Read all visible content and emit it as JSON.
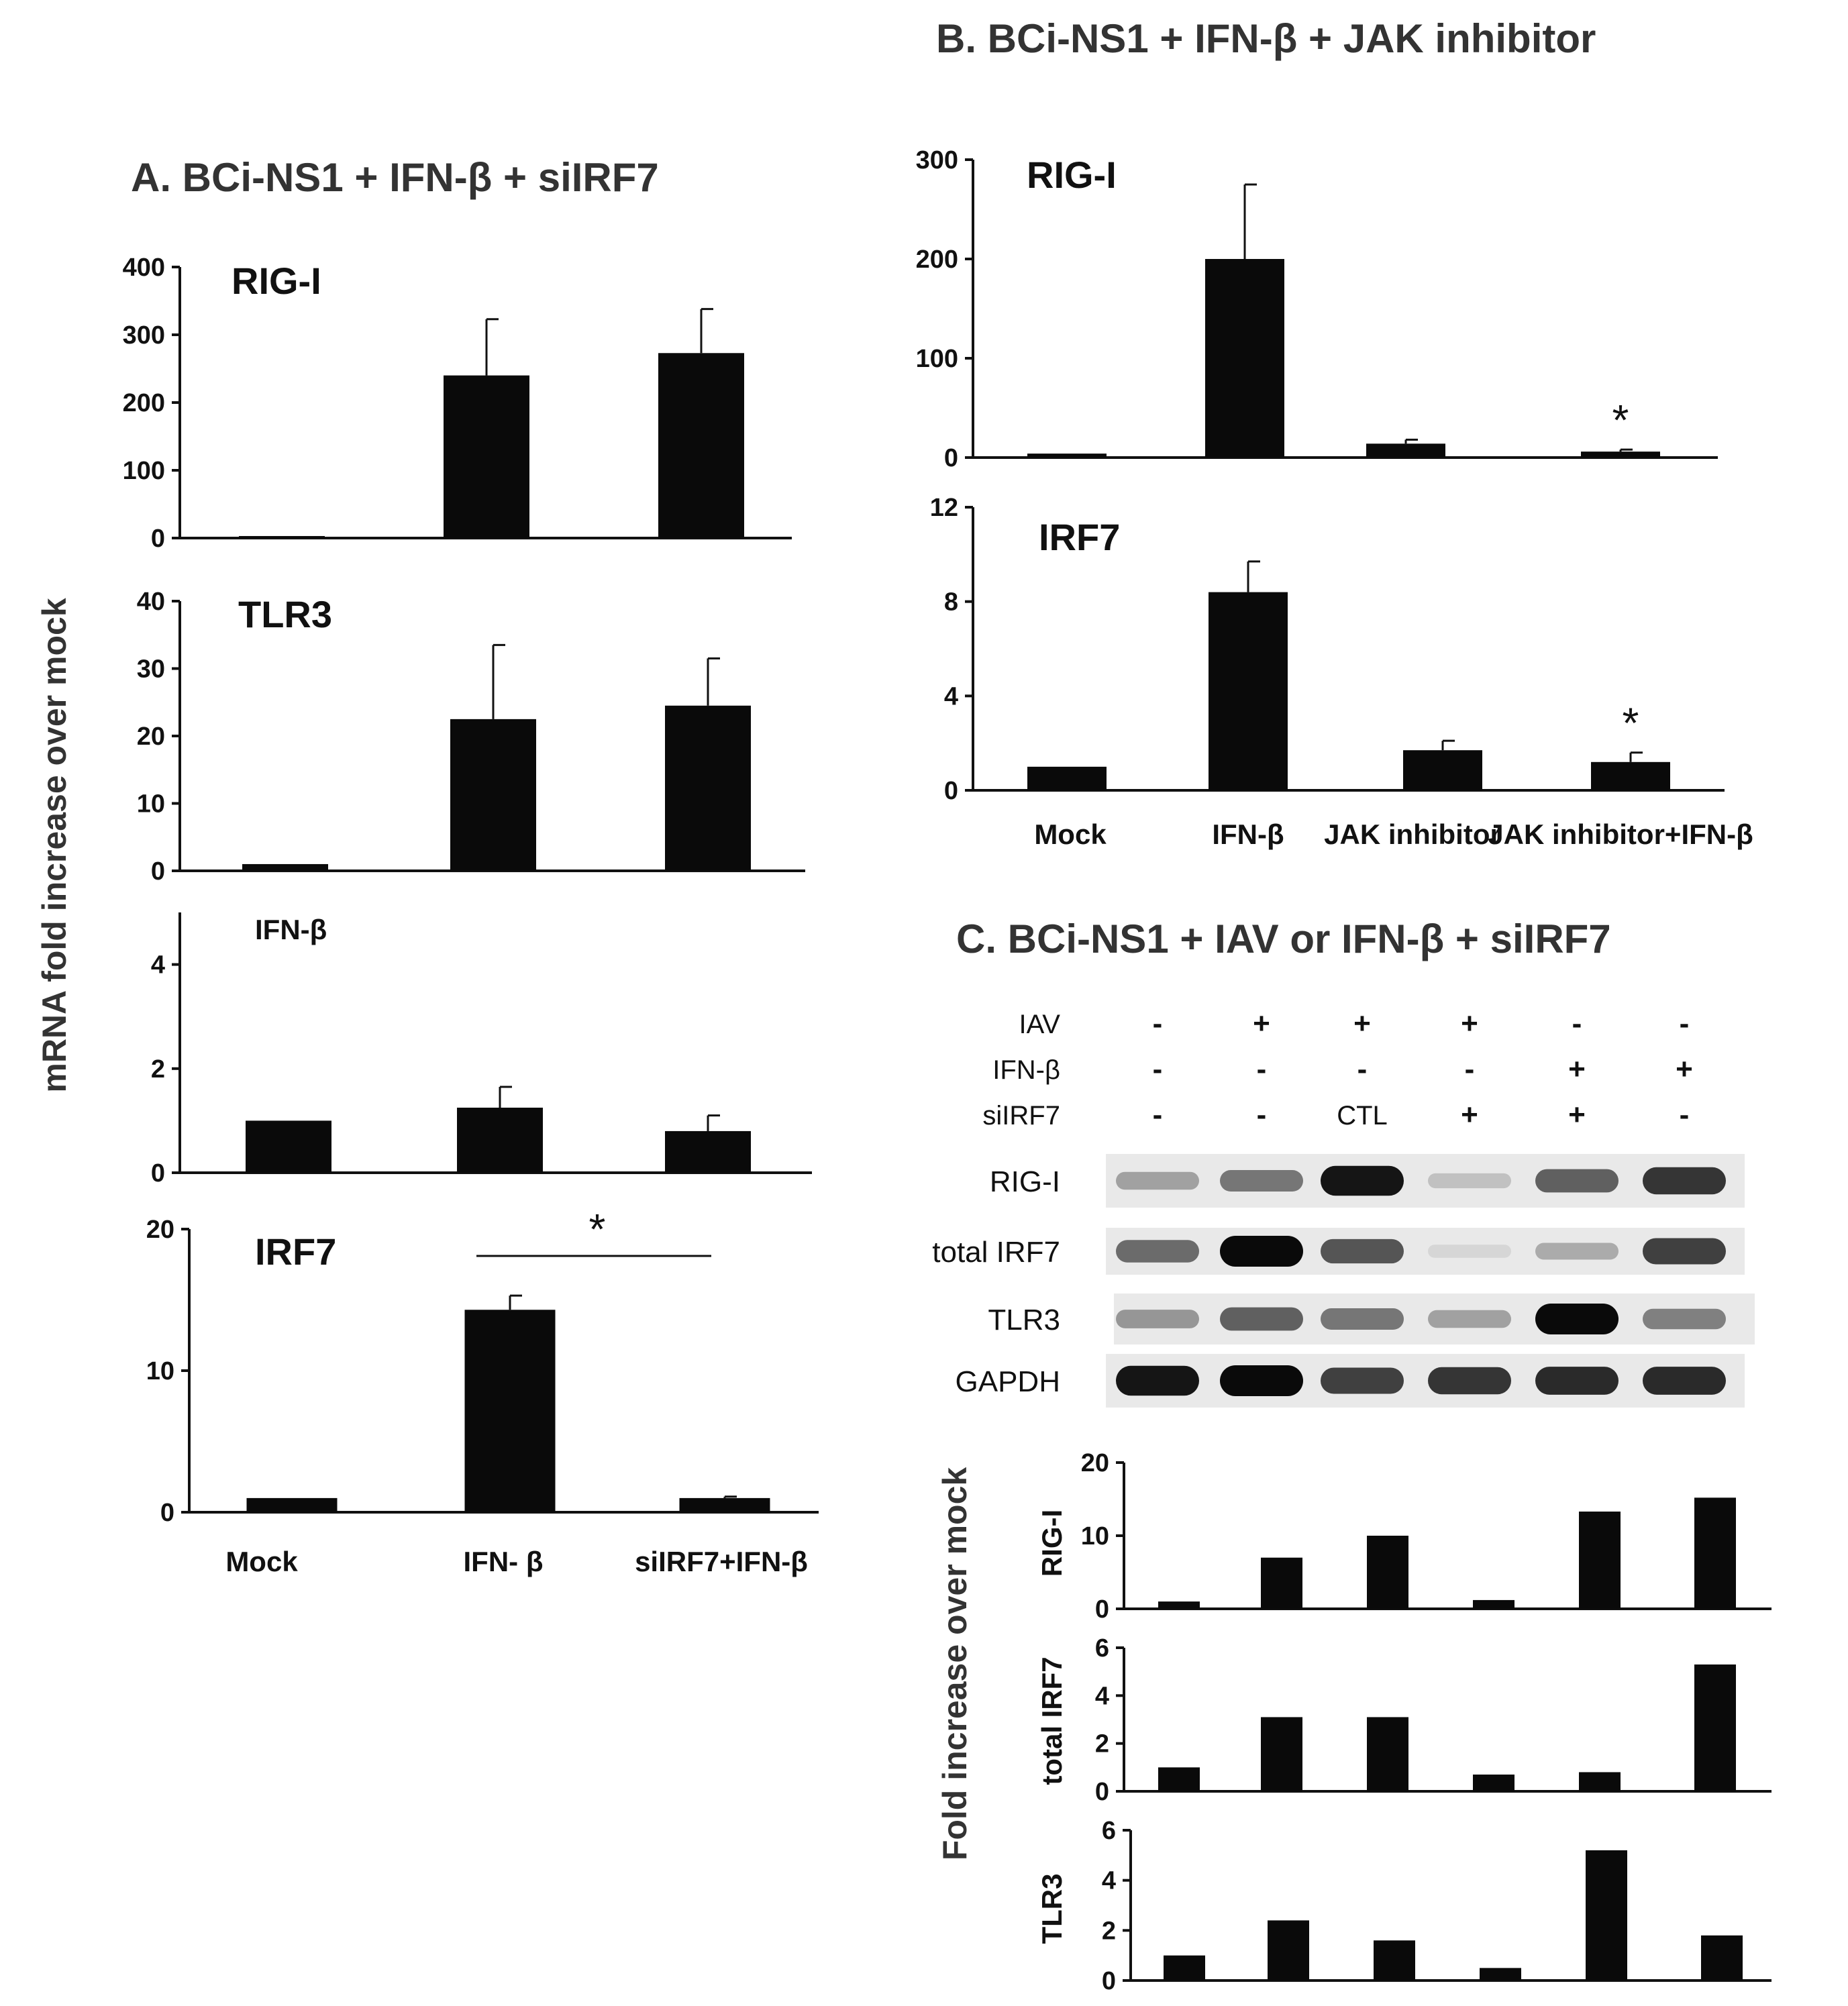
{
  "chart_data": [
    {
      "panel": "A",
      "title": "A.  BCi-NS1 + IFN-β + siIRF7",
      "type": "bar",
      "ylabel": "mRNA fold increase over mock",
      "categories": [
        "Mock",
        "IFN- β",
        "siIRF7+IFN-β"
      ],
      "subplots": [
        {
          "gene": "RIG-I",
          "ylim": [
            0,
            400
          ],
          "yticks": [
            0,
            100,
            200,
            300,
            400
          ],
          "values": [
            3,
            240,
            273
          ],
          "errors": [
            0,
            83,
            65
          ]
        },
        {
          "gene": "TLR3",
          "ylim": [
            0,
            40
          ],
          "yticks": [
            0,
            10,
            20,
            30,
            40
          ],
          "values": [
            1,
            22.5,
            24.5
          ],
          "errors": [
            0,
            11,
            7
          ]
        },
        {
          "gene": "IFN-β",
          "ylim": [
            0,
            5
          ],
          "yticks": [
            0,
            2,
            4
          ],
          "values": [
            1,
            1.25,
            0.8
          ],
          "errors": [
            0,
            0.4,
            0.3
          ]
        },
        {
          "gene": "IRF7",
          "ylim": [
            0,
            20
          ],
          "yticks": [
            0,
            10,
            20
          ],
          "values": [
            1,
            14.3,
            1
          ],
          "errors": [
            0,
            1,
            0.1
          ],
          "significance": {
            "from": 1,
            "to": 2,
            "label": "*"
          }
        }
      ]
    },
    {
      "panel": "B",
      "title": "B. BCi-NS1 + IFN-β + JAK inhibitor",
      "type": "bar",
      "categories": [
        "Mock",
        "IFN-β",
        "JAK inhibitor",
        "JAK inhibitor+IFN-β"
      ],
      "subplots": [
        {
          "gene": "RIG-I",
          "ylim": [
            0,
            300
          ],
          "yticks": [
            0,
            100,
            200,
            300
          ],
          "values": [
            4,
            200,
            14,
            6
          ],
          "errors": [
            0,
            75,
            4,
            2
          ],
          "stars": [
            3
          ]
        },
        {
          "gene": "IRF7",
          "ylim": [
            0,
            12
          ],
          "yticks": [
            0,
            4,
            8,
            12
          ],
          "values": [
            1,
            8.4,
            1.7,
            1.2
          ],
          "errors": [
            0,
            1.3,
            0.4,
            0.4
          ],
          "stars": [
            3
          ]
        }
      ]
    },
    {
      "panel": "C",
      "title": "C.  BCi-NS1 + IAV or IFN-β + siIRF7",
      "type": "bar",
      "ylabel": "Fold increase over mock",
      "treatments": [
        {
          "label": "IAV",
          "signs": [
            "-",
            "+",
            "+",
            "+",
            "-",
            "-"
          ]
        },
        {
          "label": "IFN-β",
          "signs": [
            "-",
            "-",
            "-",
            "-",
            "+",
            "+"
          ]
        },
        {
          "label": "siIRF7",
          "signs": [
            "-",
            "-",
            "CTL",
            "+",
            "+",
            "-"
          ]
        }
      ],
      "blot_rows": [
        "RIG-I",
        "total IRF7",
        "TLR3",
        "GAPDH"
      ],
      "blot_intensity": [
        [
          0.3,
          0.5,
          0.95,
          0.15,
          0.6,
          0.8
        ],
        [
          0.55,
          1.0,
          0.65,
          0.05,
          0.25,
          0.75
        ],
        [
          0.35,
          0.6,
          0.5,
          0.3,
          1.0,
          0.45
        ],
        [
          0.95,
          1.0,
          0.75,
          0.8,
          0.85,
          0.85
        ]
      ],
      "subplots": [
        {
          "gene": "RIG-I",
          "ylim": [
            0,
            20
          ],
          "yticks": [
            0,
            10,
            20
          ],
          "values": [
            1,
            7,
            10,
            1.2,
            13.3,
            15.2
          ]
        },
        {
          "gene": "total IRF7",
          "ylim": [
            0,
            6
          ],
          "yticks": [
            0,
            2,
            4,
            6
          ],
          "values": [
            1,
            3.1,
            3.1,
            0.7,
            0.8,
            5.3
          ]
        },
        {
          "gene": "TLR3",
          "ylim": [
            0,
            6
          ],
          "yticks": [
            0,
            2,
            4,
            6
          ],
          "values": [
            1,
            2.4,
            1.6,
            0.5,
            5.2,
            1.8
          ]
        }
      ]
    }
  ]
}
